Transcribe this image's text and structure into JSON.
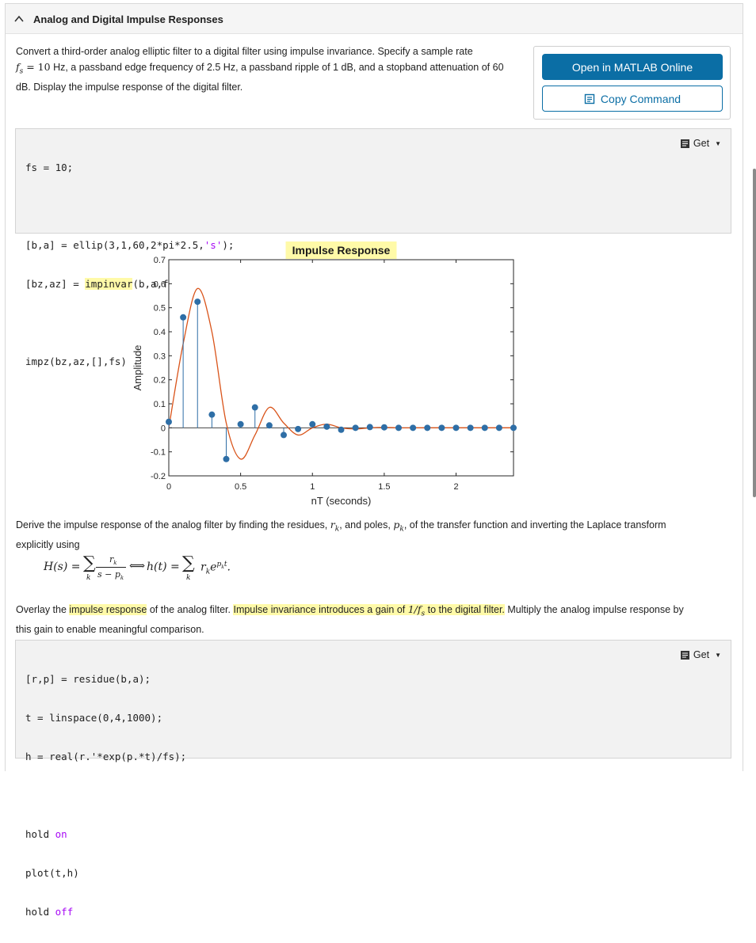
{
  "header": {
    "title": "Analog and Digital Impulse Responses"
  },
  "intro": {
    "p1": "Convert a third-order analog elliptic filter to a digital filter using impulse invariance. Specify a sample rate",
    "fs_symbol": "f",
    "fs_sub": "s",
    "fs_eq": " = 10",
    "p2": " Hz, a passband edge frequency of 2.5 Hz, a passband ripple of 1 dB, and a stopband attenuation of 60",
    "p3": "dB. Display the impulse response of the digital filter."
  },
  "buttons": {
    "open_online": "Open in MATLAB Online",
    "copy_command": "Copy Command"
  },
  "code1": {
    "get_label": "Get",
    "line1": "fs = 10;",
    "line3": "[b,a] = ellip(3,1,60,2*pi*2.5,",
    "line3_str": "'s'",
    "line3_end": ");",
    "line4a": "[bz,az] = ",
    "line4_hl": "impinvar",
    "line4b": "(b,a,fs);",
    "line6": "impz(bz,az,[],fs)"
  },
  "chart_data": {
    "type": "stem",
    "title": "Impulse Response",
    "xlabel": "nT (seconds)",
    "ylabel": "Amplitude",
    "xlim": [
      0,
      2.4
    ],
    "ylim": [
      -0.2,
      0.7
    ],
    "xticks": [
      "0",
      "0.5",
      "1",
      "1.5",
      "2"
    ],
    "yticks": [
      "-0.2",
      "-0.1",
      "0",
      "0.1",
      "0.2",
      "0.3",
      "0.4",
      "0.5",
      "0.6",
      "0.7"
    ],
    "x": [
      0,
      0.1,
      0.2,
      0.3,
      0.4,
      0.5,
      0.6,
      0.7,
      0.8,
      0.9,
      1.0,
      1.1,
      1.2,
      1.3,
      1.4,
      1.5,
      1.6,
      1.7,
      1.8,
      1.9,
      2.0,
      2.1,
      2.2,
      2.3,
      2.4
    ],
    "series": [
      {
        "values": [
          0.025,
          0.46,
          0.525,
          0.055,
          -0.13,
          0.015,
          0.085,
          0.01,
          -0.03,
          -0.005,
          0.015,
          0.005,
          -0.008,
          0.0,
          0.003,
          0.002,
          0.0,
          0.0,
          0.0,
          0.0,
          0.0,
          0.0,
          0.0,
          0.0,
          0.0
        ],
        "color": "#2e6ea6"
      },
      {
        "values": [
          0.0,
          0.35,
          0.58,
          0.4,
          0.02,
          -0.13,
          -0.03,
          0.085,
          0.02,
          -0.03,
          0.0,
          0.015,
          0.0,
          -0.005,
          0.0,
          0.002,
          0.0,
          0.0,
          0.0,
          0.0,
          0.0,
          0.0,
          0.0,
          0.0,
          0.0
        ],
        "color": "#d95319"
      }
    ]
  },
  "para2": {
    "a": "Derive the impulse response of the analog filter by finding the residues, ",
    "r": "r",
    "rsub": "k",
    "b": ", and poles, ",
    "p": "p",
    "psub": "k",
    "c": ", of the transfer function and inverting the Laplace transform",
    "d": "explicitly using"
  },
  "formula": {
    "lhs": "H(s) = ",
    "num": "r",
    "num_sub": "k",
    "den": "s − p",
    "den_sub": "k",
    "arrow": "⟺",
    "rhs": "h(t) = ",
    "term": "r",
    "term_sub": "k",
    "exp": "e",
    "exp_sup": "p",
    "exp_sup_sub": "k",
    "exp_sup_t": "t",
    "end": ".",
    "sum_sub": "k"
  },
  "para3": {
    "a": "Overlay the ",
    "b_hl": "impulse response",
    "c": " of the analog filter. ",
    "d_hl": "Impulse invariance introduces a gain of ",
    "gain": "1/f",
    "gain_sub": "s",
    "e_hl": " to the digital filter.",
    "f": " Multiply the analog impulse response by",
    "g": "this gain to enable meaningful comparison."
  },
  "code2": {
    "get_label": "Get",
    "line1": "[r,p] = residue(b,a);",
    "line2": "t = linspace(0,4,1000);",
    "line3": "h = real(r.'*exp(p.*t)/fs);",
    "line5a": "hold ",
    "line5kw": "on",
    "line6": "plot(t,h)",
    "line7a": "hold ",
    "line7kw": "off"
  }
}
